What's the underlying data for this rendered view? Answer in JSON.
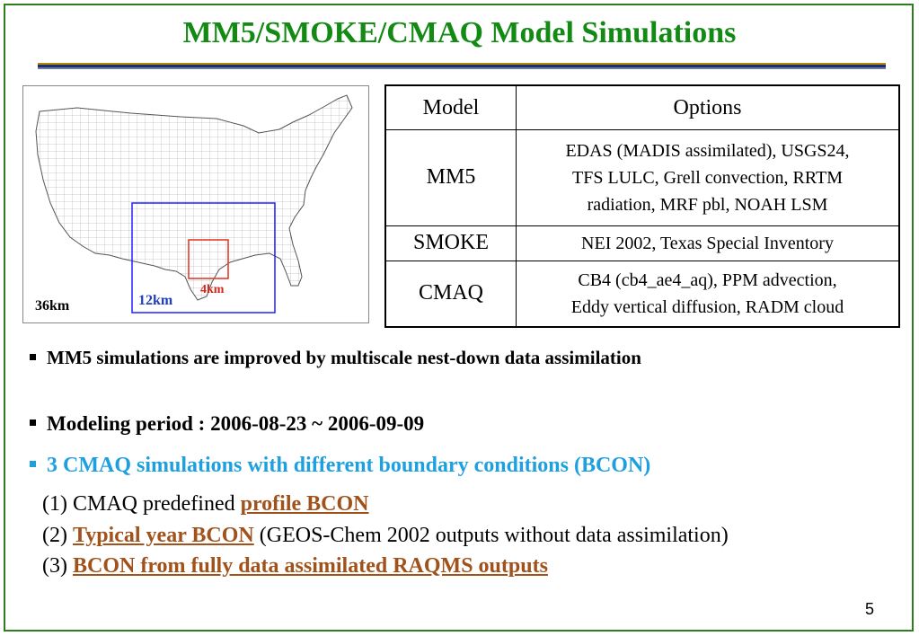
{
  "slide": {
    "title": "MM5/SMOKE/CMAQ Model Simulations",
    "page_number": "5"
  },
  "map": {
    "labels": {
      "outer": "36km",
      "middle": "12km",
      "inner": "4km"
    },
    "colors": {
      "middle_box": "#2020ff",
      "inner_box": "#e03020"
    }
  },
  "table": {
    "headers": {
      "model": "Model",
      "options": "Options"
    },
    "rows": [
      {
        "model": "MM5",
        "lines": [
          "EDAS (MADIS assimilated), USGS24,",
          "TFS LULC, Grell convection, RRTM",
          "radiation, MRF pbl, NOAH LSM"
        ]
      },
      {
        "model": "SMOKE",
        "lines": [
          "NEI 2002, Texas Special Inventory"
        ]
      },
      {
        "model": "CMAQ",
        "lines": [
          "CB4 (cb4_ae4_aq), PPM advection,",
          "Eddy vertical diffusion, RADM cloud"
        ]
      }
    ]
  },
  "bullets": {
    "b1": "MM5 simulations are improved by multiscale nest-down data assimilation",
    "b2": "Modeling period : 2006-08-23 ~ 2006-09-09",
    "b3": "3 CMAQ simulations with different boundary conditions (BCON)"
  },
  "items": {
    "i1": {
      "prefix": "(1) CMAQ predefined ",
      "highlight": "profile BCON"
    },
    "i2": {
      "prefix": "(2) ",
      "highlight": "Typical year BCON",
      "suffix": " (GEOS-Chem 2002 outputs without data assimilation)"
    },
    "i3": {
      "prefix": "(3) ",
      "highlight": "BCON from fully data assimilated RAQMS outputs"
    }
  },
  "colors": {
    "title": "#138a13",
    "bullet3": "#1ea0e0",
    "highlight": "#a0521a"
  }
}
